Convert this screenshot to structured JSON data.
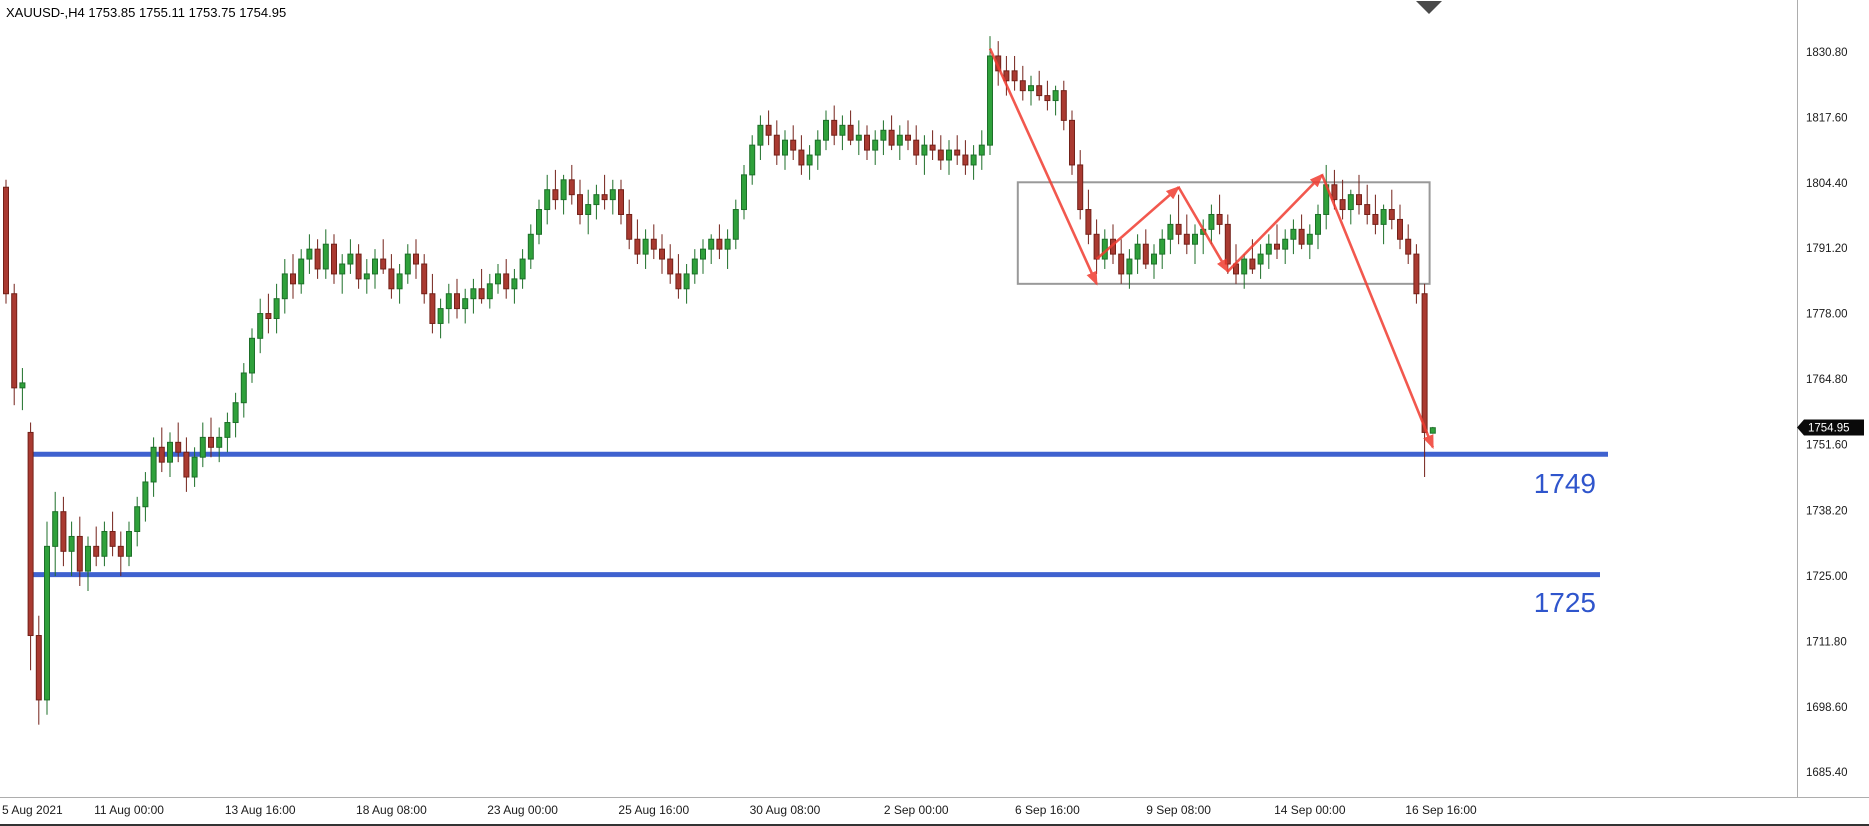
{
  "window": {
    "title": "XAUUSD-,H4  1753.85 1755.11 1753.75 1754.95"
  },
  "price_axis": {
    "labels": [
      "1830.80",
      "1817.60",
      "1804.40",
      "1791.20",
      "1778.00",
      "1764.80",
      "1751.60",
      "1738.20",
      "1725.00",
      "1711.80",
      "1698.60",
      "1685.40"
    ],
    "current_price": "1754.95"
  },
  "time_axis": {
    "labels": [
      {
        "text": "5 Aug 2021",
        "x": 2
      },
      {
        "text": "11 Aug 00:00",
        "bar": 15
      },
      {
        "text": "13 Aug 16:00",
        "bar": 31
      },
      {
        "text": "18 Aug 08:00",
        "bar": 47
      },
      {
        "text": "23 Aug 00:00",
        "bar": 63
      },
      {
        "text": "25 Aug 16:00",
        "bar": 79
      },
      {
        "text": "30 Aug 08:00",
        "bar": 95
      },
      {
        "text": "2 Sep 00:00",
        "bar": 111
      },
      {
        "text": "6 Sep 16:00",
        "bar": 127
      },
      {
        "text": "9 Sep 08:00",
        "bar": 143
      },
      {
        "text": "14 Sep 00:00",
        "bar": 159
      },
      {
        "text": "16 Sep 16:00",
        "bar": 175
      }
    ]
  },
  "chart_data": {
    "type": "candlestick",
    "title": "XAUUSD-,H4",
    "symbol": "XAUUSD-",
    "timeframe": "H4",
    "current_bar": {
      "open": 1753.85,
      "high": 1755.11,
      "low": 1753.75,
      "close": 1754.95
    },
    "ylim": [
      1680.4,
      1841.3
    ],
    "grid": false,
    "colors": {
      "bull_fill": "#2fa13b",
      "bull_stroke": "#1d6f29",
      "bear_fill": "#a93a31",
      "bear_stroke": "#732119",
      "support_line": "#2f55cc",
      "range_box": "#999999",
      "arrow": "#f03b30",
      "price_tag_bg": "#0a0a0a"
    },
    "ohlc": [
      [
        1803.5,
        1805,
        1780,
        1782
      ],
      [
        1782,
        1784,
        1759.5,
        1763
      ],
      [
        1763,
        1767,
        1758.5,
        1764
      ],
      [
        1754,
        1756,
        1706,
        1713
      ],
      [
        1713,
        1717,
        1695,
        1700
      ],
      [
        1700,
        1736,
        1697,
        1731
      ],
      [
        1731,
        1742,
        1725,
        1738
      ],
      [
        1738,
        1741,
        1727,
        1730
      ],
      [
        1730,
        1736,
        1725,
        1733
      ],
      [
        1733,
        1737,
        1723,
        1726
      ],
      [
        1726,
        1733,
        1722,
        1731
      ],
      [
        1731,
        1735,
        1727,
        1729
      ],
      [
        1729,
        1736,
        1727,
        1734
      ],
      [
        1734,
        1738,
        1729,
        1731
      ],
      [
        1731,
        1734,
        1725,
        1729
      ],
      [
        1729,
        1736,
        1727,
        1734
      ],
      [
        1734,
        1741,
        1731,
        1739
      ],
      [
        1739,
        1746,
        1736,
        1744
      ],
      [
        1744,
        1753,
        1741,
        1751
      ],
      [
        1751,
        1755,
        1746,
        1748
      ],
      [
        1748,
        1754,
        1745,
        1752
      ],
      [
        1752,
        1756,
        1748,
        1750
      ],
      [
        1750,
        1753,
        1742,
        1745
      ],
      [
        1745,
        1751,
        1743,
        1749
      ],
      [
        1749,
        1756,
        1747,
        1753
      ],
      [
        1753,
        1757,
        1749,
        1751
      ],
      [
        1751,
        1755,
        1748,
        1753
      ],
      [
        1753,
        1758,
        1750,
        1756
      ],
      [
        1756,
        1762,
        1753,
        1760
      ],
      [
        1760,
        1768,
        1757,
        1766
      ],
      [
        1766,
        1775,
        1764,
        1773
      ],
      [
        1773,
        1781,
        1770,
        1778
      ],
      [
        1778,
        1782,
        1774,
        1777
      ],
      [
        1777,
        1784,
        1774,
        1781
      ],
      [
        1781,
        1789,
        1778,
        1786
      ],
      [
        1786,
        1790,
        1781,
        1784
      ],
      [
        1784,
        1791,
        1782,
        1789
      ],
      [
        1789,
        1794,
        1786,
        1791
      ],
      [
        1791,
        1793,
        1785,
        1787
      ],
      [
        1787,
        1795,
        1785,
        1792
      ],
      [
        1792,
        1794,
        1784,
        1786
      ],
      [
        1786,
        1790,
        1782,
        1788
      ],
      [
        1788,
        1793,
        1786,
        1790
      ],
      [
        1790,
        1792,
        1783,
        1785
      ],
      [
        1785,
        1789,
        1782,
        1786
      ],
      [
        1786,
        1791,
        1783,
        1789
      ],
      [
        1789,
        1793,
        1786,
        1787
      ],
      [
        1787,
        1790,
        1781,
        1783
      ],
      [
        1783,
        1788,
        1780,
        1786
      ],
      [
        1786,
        1792,
        1784,
        1790
      ],
      [
        1790,
        1793,
        1785,
        1788
      ],
      [
        1788,
        1790,
        1780,
        1782
      ],
      [
        1782,
        1786,
        1774,
        1776
      ],
      [
        1776,
        1781,
        1773,
        1779
      ],
      [
        1779,
        1784,
        1776,
        1782
      ],
      [
        1782,
        1785,
        1777,
        1779
      ],
      [
        1779,
        1783,
        1776,
        1781
      ],
      [
        1781,
        1785,
        1778,
        1783
      ],
      [
        1783,
        1787,
        1780,
        1781
      ],
      [
        1781,
        1786,
        1779,
        1784
      ],
      [
        1784,
        1788,
        1782,
        1786
      ],
      [
        1786,
        1789,
        1781,
        1783
      ],
      [
        1783,
        1787,
        1780,
        1785
      ],
      [
        1785,
        1791,
        1783,
        1789
      ],
      [
        1789,
        1796,
        1787,
        1794
      ],
      [
        1794,
        1801,
        1792,
        1799
      ],
      [
        1799,
        1806,
        1796,
        1803
      ],
      [
        1803,
        1807,
        1799,
        1801
      ],
      [
        1801,
        1806,
        1798,
        1805
      ],
      [
        1805,
        1808,
        1800,
        1802
      ],
      [
        1802,
        1805,
        1796,
        1798
      ],
      [
        1798,
        1803,
        1794,
        1800
      ],
      [
        1800,
        1804,
        1797,
        1802
      ],
      [
        1802,
        1806,
        1799,
        1801
      ],
      [
        1801,
        1805,
        1798,
        1803
      ],
      [
        1803,
        1805,
        1796,
        1798
      ],
      [
        1798,
        1801,
        1791,
        1793
      ],
      [
        1793,
        1797,
        1788,
        1790
      ],
      [
        1790,
        1795,
        1787,
        1793
      ],
      [
        1793,
        1796,
        1789,
        1791
      ],
      [
        1791,
        1794,
        1786,
        1789
      ],
      [
        1789,
        1792,
        1784,
        1786
      ],
      [
        1786,
        1790,
        1781,
        1783
      ],
      [
        1783,
        1788,
        1780,
        1786
      ],
      [
        1786,
        1791,
        1784,
        1789
      ],
      [
        1789,
        1793,
        1786,
        1791
      ],
      [
        1791,
        1794,
        1788,
        1793
      ],
      [
        1793,
        1796,
        1789,
        1791
      ],
      [
        1791,
        1795,
        1787,
        1793
      ],
      [
        1793,
        1801,
        1791,
        1799
      ],
      [
        1799,
        1808,
        1797,
        1806
      ],
      [
        1806,
        1814,
        1804,
        1812
      ],
      [
        1812,
        1818,
        1809,
        1816
      ],
      [
        1816,
        1819,
        1812,
        1814
      ],
      [
        1814,
        1817,
        1808,
        1810
      ],
      [
        1810,
        1815,
        1807,
        1813
      ],
      [
        1813,
        1816,
        1809,
        1811
      ],
      [
        1811,
        1814,
        1806,
        1808
      ],
      [
        1808,
        1812,
        1805,
        1810
      ],
      [
        1810,
        1815,
        1807,
        1813
      ],
      [
        1813,
        1819,
        1811,
        1817
      ],
      [
        1817,
        1820,
        1812,
        1814
      ],
      [
        1814,
        1818,
        1811,
        1816
      ],
      [
        1816,
        1819,
        1812,
        1813
      ],
      [
        1813,
        1817,
        1810,
        1814
      ],
      [
        1814,
        1816,
        1809,
        1811
      ],
      [
        1811,
        1815,
        1808,
        1813
      ],
      [
        1813,
        1817,
        1810,
        1815
      ],
      [
        1815,
        1818,
        1811,
        1812
      ],
      [
        1812,
        1816,
        1809,
        1814
      ],
      [
        1814,
        1817,
        1811,
        1813
      ],
      [
        1813,
        1816,
        1808,
        1810
      ],
      [
        1810,
        1814,
        1806,
        1812
      ],
      [
        1812,
        1815,
        1809,
        1811
      ],
      [
        1811,
        1814,
        1807,
        1809
      ],
      [
        1809,
        1813,
        1806,
        1811
      ],
      [
        1811,
        1814,
        1808,
        1810
      ],
      [
        1810,
        1813,
        1806,
        1808
      ],
      [
        1808,
        1812,
        1805,
        1810
      ],
      [
        1810,
        1815,
        1807,
        1812
      ],
      [
        1812,
        1834,
        1810,
        1830
      ],
      [
        1830,
        1833,
        1824,
        1827
      ],
      [
        1827,
        1830,
        1822,
        1825
      ],
      [
        1827,
        1830,
        1823,
        1825
      ],
      [
        1825,
        1828,
        1821,
        1823
      ],
      [
        1823,
        1826,
        1820,
        1824
      ],
      [
        1824,
        1827,
        1821,
        1822
      ],
      [
        1822,
        1825,
        1819,
        1821
      ],
      [
        1821,
        1824,
        1818,
        1823
      ],
      [
        1823,
        1825,
        1815,
        1817
      ],
      [
        1817,
        1819,
        1806,
        1808
      ],
      [
        1808,
        1811,
        1797,
        1799
      ],
      [
        1799,
        1803,
        1792,
        1794
      ],
      [
        1794,
        1797,
        1786,
        1789
      ],
      [
        1789,
        1795,
        1787,
        1793
      ],
      [
        1793,
        1796,
        1788,
        1790
      ],
      [
        1790,
        1793,
        1784,
        1786
      ],
      [
        1786,
        1791,
        1783,
        1789
      ],
      [
        1789,
        1794,
        1786,
        1792
      ],
      [
        1792,
        1795,
        1787,
        1788
      ],
      [
        1788,
        1792,
        1785,
        1790
      ],
      [
        1790,
        1795,
        1787,
        1793
      ],
      [
        1793,
        1798,
        1790,
        1796
      ],
      [
        1796,
        1802,
        1792,
        1794
      ],
      [
        1794,
        1798,
        1790,
        1792
      ],
      [
        1792,
        1796,
        1788,
        1794
      ],
      [
        1794,
        1797,
        1790,
        1795
      ],
      [
        1795,
        1800,
        1792,
        1798
      ],
      [
        1798,
        1802,
        1794,
        1796
      ],
      [
        1796,
        1798,
        1786,
        1788
      ],
      [
        1788,
        1792,
        1784,
        1786
      ],
      [
        1786,
        1790,
        1783,
        1789
      ],
      [
        1789,
        1793,
        1786,
        1787
      ],
      [
        1788,
        1792,
        1785,
        1790
      ],
      [
        1790,
        1794,
        1787,
        1792
      ],
      [
        1792,
        1796,
        1789,
        1791
      ],
      [
        1791,
        1795,
        1788,
        1793
      ],
      [
        1793,
        1797,
        1790,
        1795
      ],
      [
        1795,
        1798,
        1791,
        1792
      ],
      [
        1792,
        1796,
        1789,
        1794
      ],
      [
        1794,
        1800,
        1791,
        1798
      ],
      [
        1798,
        1808,
        1795,
        1804
      ],
      [
        1804,
        1807,
        1799,
        1801
      ],
      [
        1801,
        1805,
        1797,
        1799
      ],
      [
        1799,
        1803,
        1796,
        1802
      ],
      [
        1802,
        1806,
        1798,
        1800
      ],
      [
        1800,
        1804,
        1796,
        1798
      ],
      [
        1798,
        1802,
        1794,
        1796
      ],
      [
        1796,
        1800,
        1792,
        1799
      ],
      [
        1799,
        1803,
        1795,
        1797
      ],
      [
        1797,
        1800,
        1791,
        1793
      ],
      [
        1793,
        1796,
        1788,
        1790
      ],
      [
        1790,
        1792,
        1780,
        1782
      ],
      [
        1782,
        1784,
        1745,
        1754
      ],
      [
        1753.85,
        1755.11,
        1753.75,
        1754.95
      ]
    ],
    "annotations": {
      "range_box": {
        "bar_from": 124,
        "bar_to": 173,
        "price_top": 1804.5,
        "price_bottom": 1784.0
      },
      "support_lines": [
        {
          "price": 1749.6,
          "label": "1749",
          "x_from": 28,
          "x_to": 1608
        },
        {
          "price": 1725.3,
          "label": "1725",
          "x_from": 28,
          "x_to": 1600
        }
      ],
      "arrows": [
        {
          "from_bar": 120,
          "from_price": 1831.5,
          "to_bar": 133,
          "to_price": 1784.0
        },
        {
          "from_bar": 133,
          "from_price": 1789.0,
          "to_bar": 143,
          "to_price": 1803.5
        },
        {
          "from_bar": 143,
          "from_price": 1803.5,
          "to_bar": 149,
          "to_price": 1786.5
        },
        {
          "from_bar": 149,
          "from_price": 1786.5,
          "to_bar": 160.5,
          "to_price": 1806.0
        },
        {
          "from_bar": 160.5,
          "from_price": 1806.0,
          "to_bar": 174,
          "to_price": 1751.0
        }
      ]
    }
  }
}
